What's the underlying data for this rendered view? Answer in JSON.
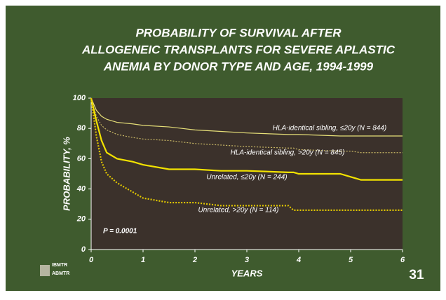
{
  "chart_data": {
    "type": "line",
    "title": [
      "PROBABILITY OF SURVIVAL AFTER",
      "ALLOGENEIC TRANSPLANTS FOR SEVERE APLASTIC",
      "ANEMIA BY DONOR TYPE AND AGE, 1994-1999"
    ],
    "x_label": "YEARS",
    "y_label": "PROBABILITY, %",
    "annotation": "P = 0.0001",
    "slide_number": "31",
    "logo": [
      "IBMTR",
      "ABMTR"
    ],
    "x": [
      0,
      0.1,
      0.2,
      0.3,
      0.5,
      0.8,
      1,
      1.5,
      2,
      2.5,
      3,
      3.8,
      3.9,
      4,
      4.8,
      5,
      5.2,
      6
    ],
    "series": [
      {
        "name": "HLA-identical sibling, ≤20y (N = 844)",
        "color": "#e6df78",
        "dashed": false,
        "width": 1.2,
        "values": [
          100,
          92,
          88,
          86,
          84,
          83,
          82,
          81,
          79,
          78,
          77,
          76,
          76,
          76,
          75,
          75,
          75,
          75
        ]
      },
      {
        "name": "HLA-identical sibling, >20y (N = 845)",
        "color": "#c9b866",
        "dashed": true,
        "width": 1.2,
        "values": [
          100,
          88,
          82,
          79,
          76,
          74,
          73,
          72,
          70,
          69,
          68,
          67,
          67,
          66,
          65,
          65,
          64,
          64
        ]
      },
      {
        "name": "Unrelated, ≤20y (N = 244)",
        "color": "#f2e200",
        "dashed": false,
        "width": 2.2,
        "values": [
          100,
          85,
          72,
          64,
          60,
          58,
          56,
          53,
          53,
          52,
          52,
          51,
          51,
          50,
          50,
          48,
          46,
          46
        ]
      },
      {
        "name": "Unrelated, >20y (N = 114)",
        "color": "#e2c800",
        "dashed": true,
        "width": 2.2,
        "values": [
          100,
          75,
          58,
          50,
          44,
          38,
          34,
          31,
          31,
          29,
          29,
          29,
          26,
          26,
          26,
          26,
          26,
          26
        ]
      }
    ],
    "xlim": [
      0,
      6
    ],
    "ylim": [
      0,
      100
    ],
    "xticks": [
      0,
      1,
      2,
      3,
      4,
      5,
      6
    ],
    "yticks": [
      0,
      20,
      40,
      60,
      80,
      100
    ]
  }
}
